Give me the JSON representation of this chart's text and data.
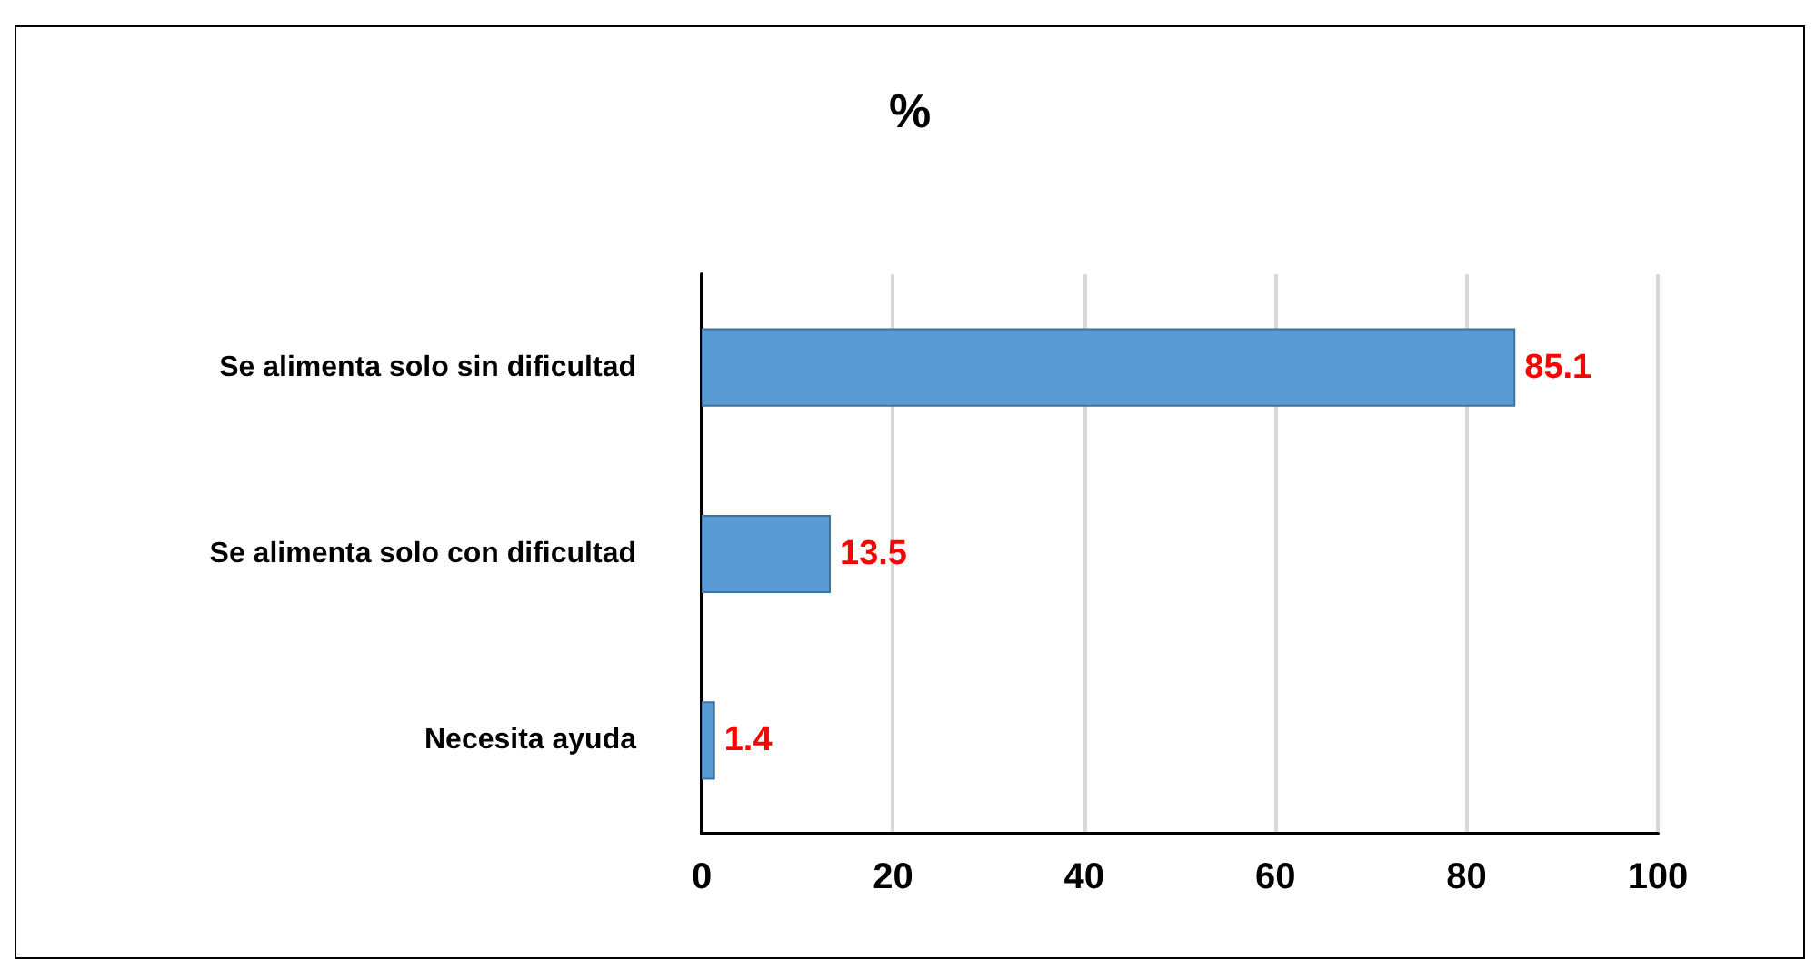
{
  "chart_data": {
    "type": "bar",
    "orientation": "horizontal",
    "title": "%",
    "categories": [
      "Se alimenta solo sin dificultad",
      "Se alimenta solo con dificultad",
      "Necesita ayuda"
    ],
    "values": [
      85.1,
      13.5,
      1.4
    ],
    "color": "#5b9bd5",
    "xlim": [
      0,
      100
    ],
    "xticks": [
      0,
      20,
      40,
      60,
      80,
      100
    ],
    "grid": "x",
    "data_labels": true
  }
}
